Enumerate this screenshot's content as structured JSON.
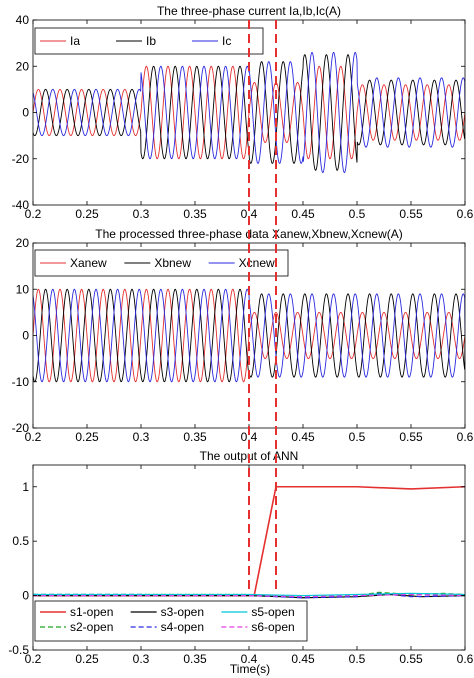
{
  "figure": {
    "xlabel": "Time(s)",
    "fault_marker_times": [
      0.4,
      0.425
    ],
    "fault_marker_color": "#e53030"
  },
  "chart_data": [
    {
      "type": "line",
      "title": "The three-phase current Ia,Ib,Ic(A)",
      "xlim": [
        0.2,
        0.6
      ],
      "ylim": [
        -40,
        40
      ],
      "x_ticks": [
        "0.2",
        "0.25",
        "0.3",
        "0.35",
        "0.4",
        "0.45",
        "0.5",
        "0.55",
        "0.6"
      ],
      "y_ticks": [
        "40",
        "20",
        "0",
        "-20",
        "-40"
      ],
      "y_tick_values": [
        40,
        20,
        0,
        -20,
        -40
      ],
      "legend_position": "top-left",
      "grid": false,
      "frequency_hz": 50,
      "series": [
        {
          "name": "Ia",
          "color": "#e53030",
          "phase_deg": 0
        },
        {
          "name": "Ib",
          "color": "#000000",
          "phase_deg": -120
        },
        {
          "name": "Ic",
          "color": "#2a2ae0",
          "phase_deg": 120
        }
      ],
      "amplitude_segments": [
        {
          "t_start": 0.2,
          "t_end": 0.3,
          "amplitudes": {
            "Ia": 10,
            "Ib": 10,
            "Ic": 10
          }
        },
        {
          "t_start": 0.3,
          "t_end": 0.4,
          "amplitudes": {
            "Ia": 20,
            "Ib": 20,
            "Ic": 20
          }
        },
        {
          "t_start": 0.4,
          "t_end": 0.45,
          "amplitudes": {
            "Ia": 13,
            "Ib": 22,
            "Ic": 22
          }
        },
        {
          "t_start": 0.45,
          "t_end": 0.5,
          "amplitudes": {
            "Ia": 20,
            "Ib": 25,
            "Ic": 26
          }
        },
        {
          "t_start": 0.5,
          "t_end": 0.6,
          "amplitudes": {
            "Ia": 12,
            "Ib": 14,
            "Ic": 15
          }
        }
      ]
    },
    {
      "type": "line",
      "title": "The processed three-phase data Xanew,Xbnew,Xcnew(A)",
      "xlim": [
        0.2,
        0.6
      ],
      "ylim": [
        -20,
        20
      ],
      "x_ticks": [
        "0.2",
        "0.25",
        "0.3",
        "0.35",
        "0.4",
        "0.45",
        "0.5",
        "0.55",
        "0.6"
      ],
      "y_ticks": [
        "20",
        "10",
        "0",
        "-10",
        "-20"
      ],
      "y_tick_values": [
        20,
        10,
        0,
        -10,
        -20
      ],
      "legend_position": "top",
      "grid": false,
      "frequency_hz": 50,
      "series": [
        {
          "name": "Xanew",
          "color": "#e53030",
          "phase_deg": 0
        },
        {
          "name": "Xbnew",
          "color": "#000000",
          "phase_deg": -120
        },
        {
          "name": "Xcnew",
          "color": "#2a2ae0",
          "phase_deg": 120
        }
      ],
      "amplitude_segments": [
        {
          "t_start": 0.2,
          "t_end": 0.4,
          "amplitudes": {
            "Xanew": 10,
            "Xbnew": 10,
            "Xcnew": 10
          }
        },
        {
          "t_start": 0.4,
          "t_end": 0.6,
          "amplitudes": {
            "Xanew": 5,
            "Xbnew": 9,
            "Xcnew": 9
          }
        }
      ]
    },
    {
      "type": "line",
      "title": "The output of ANN",
      "xlim": [
        0.2,
        0.6
      ],
      "ylim": [
        -0.5,
        1.2
      ],
      "x_ticks": [
        "0.2",
        "0.25",
        "0.3",
        "0.35",
        "0.4",
        "0.45",
        "0.5",
        "0.55",
        "0.6"
      ],
      "y_ticks": [
        "1",
        "0.5",
        "0",
        "-0.5"
      ],
      "y_tick_values": [
        1,
        0.5,
        0,
        -0.5
      ],
      "legend_position": "bottom-right",
      "grid": false,
      "series": [
        {
          "name": "s1-open",
          "color": "#e53030",
          "dash": "solid",
          "width": 1.6,
          "x": [
            0.2,
            0.3,
            0.4,
            0.405,
            0.425,
            0.5,
            0.55,
            0.6
          ],
          "y": [
            0.0,
            0.0,
            0.0,
            0.01,
            1.0,
            1.0,
            0.98,
            1.0
          ]
        },
        {
          "name": "s2-open",
          "color": "#1fa81f",
          "dash": "dashed",
          "width": 1.2,
          "x": [
            0.2,
            0.3,
            0.4,
            0.45,
            0.5,
            0.52,
            0.55,
            0.58,
            0.6
          ],
          "y": [
            0.01,
            0.01,
            0.01,
            -0.01,
            0.0,
            0.03,
            0.01,
            0.02,
            0.01
          ]
        },
        {
          "name": "s3-open",
          "color": "#000000",
          "dash": "solid",
          "width": 1.2,
          "x": [
            0.2,
            0.3,
            0.4,
            0.43,
            0.45,
            0.5,
            0.53,
            0.56,
            0.6
          ],
          "y": [
            0.0,
            0.0,
            0.0,
            -0.01,
            -0.02,
            -0.01,
            0.01,
            -0.01,
            0.0
          ]
        },
        {
          "name": "s4-open",
          "color": "#2a2ae0",
          "dash": "dashed",
          "width": 1.2,
          "x": [
            0.2,
            0.3,
            0.4,
            0.45,
            0.5,
            0.52,
            0.55,
            0.6
          ],
          "y": [
            0.01,
            0.01,
            0.0,
            -0.02,
            -0.01,
            0.02,
            -0.01,
            0.0
          ]
        },
        {
          "name": "s5-open",
          "color": "#00c8d8",
          "dash": "solid",
          "width": 1.2,
          "x": [
            0.2,
            0.3,
            0.4,
            0.45,
            0.5,
            0.55,
            0.6
          ],
          "y": [
            0.01,
            0.01,
            0.01,
            0.0,
            0.01,
            0.02,
            0.01
          ]
        },
        {
          "name": "s6-open",
          "color": "#e040e0",
          "dash": "dashed",
          "width": 1.2,
          "x": [
            0.2,
            0.3,
            0.4,
            0.45,
            0.5,
            0.55,
            0.6
          ],
          "y": [
            0.0,
            0.0,
            0.0,
            -0.01,
            0.0,
            0.01,
            0.0
          ]
        }
      ]
    }
  ]
}
